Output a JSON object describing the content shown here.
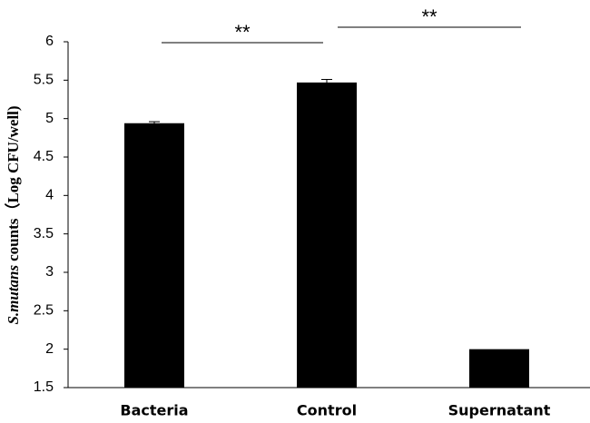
{
  "chart_data": {
    "type": "bar",
    "ylabel": [
      "S.mutans",
      "counts（Log CFU/well)"
    ],
    "categories": [
      "Bacteria",
      "Control",
      "Supernatant"
    ],
    "values": [
      4.94,
      5.47,
      2.0
    ],
    "errors": [
      0.02,
      0.04,
      0
    ],
    "color": "#000000",
    "ylim": [
      1.5,
      6
    ],
    "yticks": [
      1.5,
      2,
      2.5,
      3,
      3.5,
      4,
      4.5,
      5,
      5.5,
      6
    ],
    "grid": false,
    "annotations": [
      "**",
      "**"
    ]
  }
}
